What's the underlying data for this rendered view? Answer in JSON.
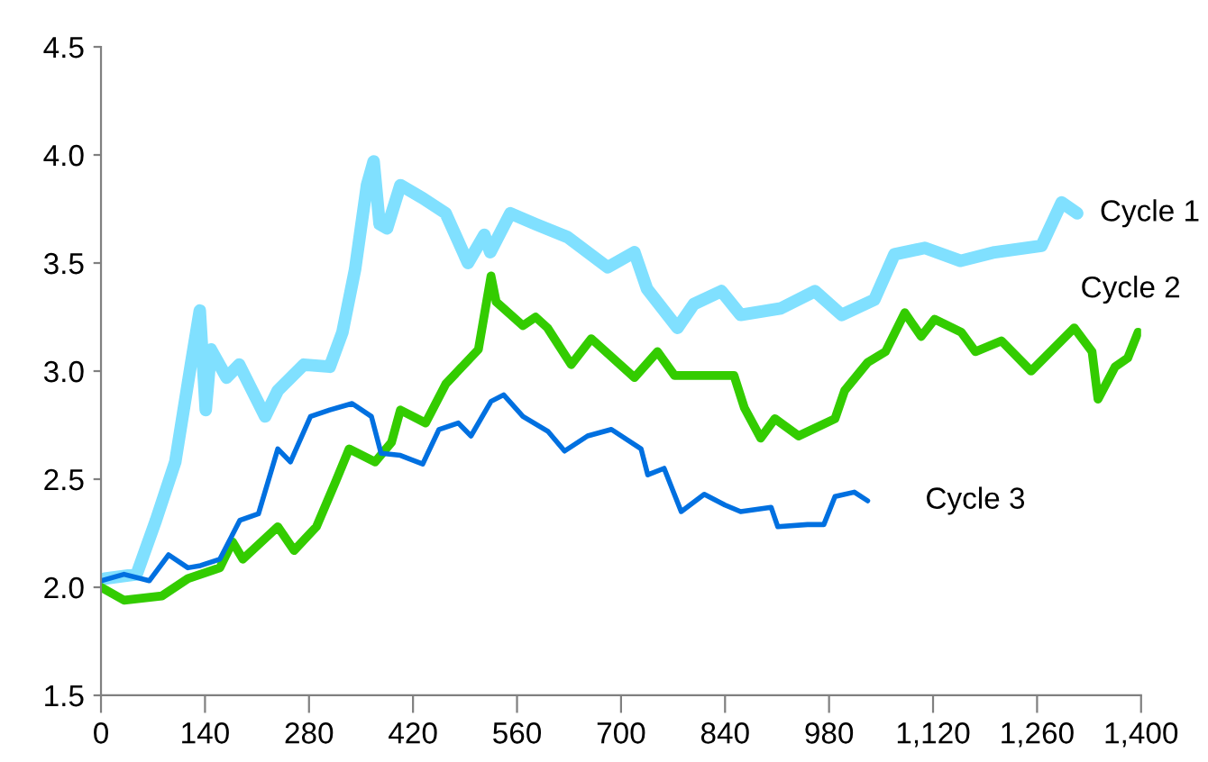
{
  "chart_data": {
    "type": "line",
    "xlim": [
      0,
      1400
    ],
    "ylim": [
      1.5,
      4.5
    ],
    "xticks": [
      0,
      140,
      280,
      420,
      560,
      700,
      840,
      980,
      {
        "value": 1120,
        "label": "1,120"
      },
      {
        "value": 1260,
        "label": "1,260"
      },
      {
        "value": 1400,
        "label": "1,400"
      }
    ],
    "yticks": [
      {
        "value": 1.5,
        "label": "1.5"
      },
      {
        "value": 2.0,
        "label": "2.0"
      },
      {
        "value": 2.5,
        "label": "2.5"
      },
      {
        "value": 3.0,
        "label": "3.0"
      },
      {
        "value": 3.5,
        "label": "3.5"
      },
      {
        "value": 4.0,
        "label": "4.0"
      },
      {
        "value": 4.5,
        "label": "4.5"
      }
    ],
    "grid": false,
    "legend": false,
    "marker": "none",
    "line_style": "solid",
    "series": [
      {
        "name": "Cycle 1",
        "color": "#80e0ff",
        "x": [
          5,
          48,
          74,
          100,
          121,
          133,
          141,
          148,
          169,
          186,
          221,
          238,
          273,
          308,
          325,
          342,
          358,
          367,
          375,
          385,
          403,
          433,
          464,
          494,
          516,
          524,
          551,
          585,
          628,
          682,
          718,
          735,
          776,
          798,
          835,
          861,
          915,
          961,
          997,
          1041,
          1068,
          1109,
          1157,
          1203,
          1266,
          1293,
          1314
        ],
        "values": [
          2.04,
          2.06,
          2.31,
          2.58,
          3.03,
          3.28,
          2.82,
          3.1,
          2.97,
          3.03,
          2.79,
          2.91,
          3.03,
          3.02,
          3.18,
          3.47,
          3.86,
          3.97,
          3.68,
          3.66,
          3.86,
          3.8,
          3.73,
          3.5,
          3.63,
          3.55,
          3.73,
          3.68,
          3.62,
          3.48,
          3.55,
          3.38,
          3.2,
          3.31,
          3.37,
          3.26,
          3.29,
          3.37,
          3.26,
          3.33,
          3.54,
          3.57,
          3.51,
          3.55,
          3.58,
          3.78,
          3.73
        ]
      },
      {
        "name": "Cycle 2",
        "color": "#33cc00",
        "x": [
          0,
          31,
          82,
          117,
          160,
          177,
          191,
          238,
          260,
          290,
          316,
          334,
          369,
          391,
          403,
          437,
          464,
          508,
          525,
          532,
          568,
          585,
          601,
          633,
          660,
          718,
          749,
          772,
          852,
          866,
          888,
          907,
          939,
          988,
          1001,
          1032,
          1056,
          1082,
          1104,
          1122,
          1158,
          1177,
          1212,
          1252,
          1310,
          1334,
          1342,
          1365,
          1382,
          1396
        ],
        "values": [
          2.0,
          1.94,
          1.96,
          2.04,
          2.09,
          2.21,
          2.13,
          2.28,
          2.17,
          2.28,
          2.49,
          2.64,
          2.58,
          2.67,
          2.82,
          2.76,
          2.94,
          3.1,
          3.44,
          3.32,
          3.21,
          3.25,
          3.2,
          3.03,
          3.15,
          2.97,
          3.09,
          2.98,
          2.98,
          2.83,
          2.69,
          2.78,
          2.7,
          2.78,
          2.91,
          3.04,
          3.09,
          3.27,
          3.16,
          3.24,
          3.18,
          3.09,
          3.14,
          3.0,
          3.2,
          3.09,
          2.87,
          3.02,
          3.06,
          3.18
        ]
      },
      {
        "name": "Cycle 3",
        "color": "#0070e0",
        "x": [
          0,
          31,
          65,
          91,
          117,
          134,
          160,
          187,
          212,
          238,
          255,
          282,
          308,
          338,
          364,
          377,
          403,
          433,
          455,
          481,
          498,
          525,
          542,
          568,
          602,
          624,
          655,
          687,
          727,
          736,
          758,
          781,
          812,
          840,
          861,
          902,
          911,
          951,
          973,
          988,
          1014,
          1032
        ],
        "values": [
          2.03,
          2.06,
          2.03,
          2.15,
          2.09,
          2.1,
          2.13,
          2.31,
          2.34,
          2.64,
          2.58,
          2.79,
          2.82,
          2.85,
          2.79,
          2.62,
          2.61,
          2.57,
          2.73,
          2.76,
          2.7,
          2.86,
          2.89,
          2.79,
          2.72,
          2.63,
          2.7,
          2.73,
          2.64,
          2.52,
          2.55,
          2.35,
          2.43,
          2.38,
          2.35,
          2.37,
          2.28,
          2.29,
          2.29,
          2.42,
          2.44,
          2.4
        ]
      }
    ]
  }
}
